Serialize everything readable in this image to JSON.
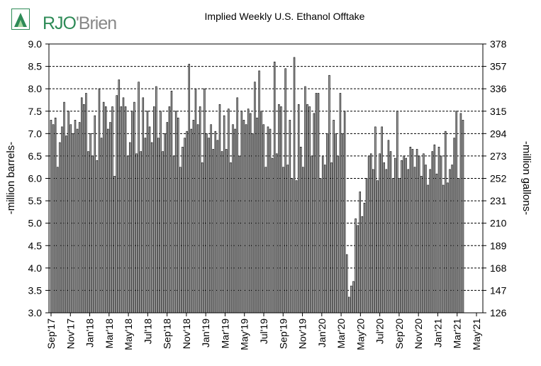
{
  "logo": {
    "brand": "RJO",
    "sub": "'Brien"
  },
  "chart_data": {
    "type": "bar",
    "title": "Implied  Weekly U.S. Ethanol Offtake",
    "ylabel": "-million barrels-",
    "y2label": "-million gallons-",
    "ylim": [
      3.0,
      9.0
    ],
    "yticks": [
      "3.0",
      "3.5",
      "4.0",
      "4.5",
      "5.0",
      "5.5",
      "6.0",
      "6.5",
      "7.0",
      "7.5",
      "8.0",
      "8.5",
      "9.0"
    ],
    "y2ticks": [
      "126",
      "147",
      "168",
      "189",
      "210",
      "231",
      "252",
      "273",
      "294",
      "315",
      "336",
      "357",
      "378"
    ],
    "xticks": [
      "Sep'17",
      "Nov'17",
      "Jan'18",
      "Mar'18",
      "May'18",
      "Jul'18",
      "Sep'18",
      "Nov'18",
      "Jan'19",
      "Mar'19",
      "May'19",
      "Jul'19",
      "Sep'19",
      "Nov'19",
      "Jan'20",
      "Mar'20",
      "May'20",
      "Jul'20",
      "Sep'20",
      "Nov'20",
      "Jan'21",
      "Mar'21",
      "May'21"
    ],
    "grid": true,
    "bar_color": "#a6a6a6",
    "values": [
      7.3,
      7.2,
      7.35,
      6.25,
      6.8,
      7.15,
      7.7,
      6.95,
      7.5,
      7.2,
      7.0,
      7.3,
      7.1,
      7.25,
      7.8,
      7.65,
      7.9,
      6.6,
      7.0,
      6.5,
      7.4,
      6.4,
      8.0,
      6.9,
      7.7,
      7.6,
      7.1,
      7.25,
      7.6,
      6.05,
      7.85,
      8.2,
      7.6,
      7.8,
      7.6,
      6.5,
      6.8,
      7.5,
      7.7,
      6.55,
      8.15,
      6.6,
      7.8,
      6.9,
      7.5,
      7.15,
      6.8,
      7.6,
      8.05,
      6.9,
      7.5,
      6.6,
      7.0,
      7.25,
      7.6,
      7.95,
      6.5,
      7.5,
      7.35,
      6.25,
      6.7,
      6.9,
      7.05,
      8.55,
      7.1,
      7.3,
      8.0,
      7.2,
      7.6,
      6.35,
      8.0,
      7.0,
      6.9,
      7.2,
      6.65,
      7.05,
      6.85,
      7.65,
      6.6,
      7.4,
      6.65,
      7.55,
      6.35,
      7.2,
      7.1,
      7.8,
      6.5,
      7.5,
      7.3,
      7.2,
      7.55,
      7.45,
      7.0,
      8.15,
      7.35,
      8.4,
      7.5,
      7.2,
      6.25,
      7.15,
      7.1,
      6.45,
      8.6,
      6.55,
      7.65,
      7.6,
      6.25,
      8.45,
      6.3,
      7.3,
      6.0,
      8.7,
      5.95,
      7.65,
      6.7,
      6.25,
      8.05,
      7.65,
      7.6,
      6.5,
      7.45,
      7.9,
      7.9,
      6.0,
      6.5,
      6.3,
      7.0,
      8.3,
      6.35,
      7.3,
      7.0,
      6.5,
      7.9,
      7.0,
      7.5,
      4.3,
      3.35,
      3.6,
      3.7,
      5.1,
      4.95,
      5.7,
      5.15,
      5.45,
      6.0,
      6.5,
      6.55,
      6.2,
      7.15,
      5.95,
      6.55,
      7.15,
      6.35,
      6.2,
      6.85,
      6.6,
      6.0,
      6.45,
      7.5,
      6.0,
      6.4,
      6.5,
      6.45,
      6.2,
      6.7,
      6.65,
      6.25,
      6.65,
      6.5,
      6.05,
      6.55,
      6.3,
      5.85,
      6.2,
      6.6,
      6.75,
      6.1,
      6.7,
      6.5,
      5.85,
      7.05,
      5.9,
      6.2,
      6.3,
      6.9,
      7.5,
      6.0,
      7.45,
      7.3
    ]
  }
}
